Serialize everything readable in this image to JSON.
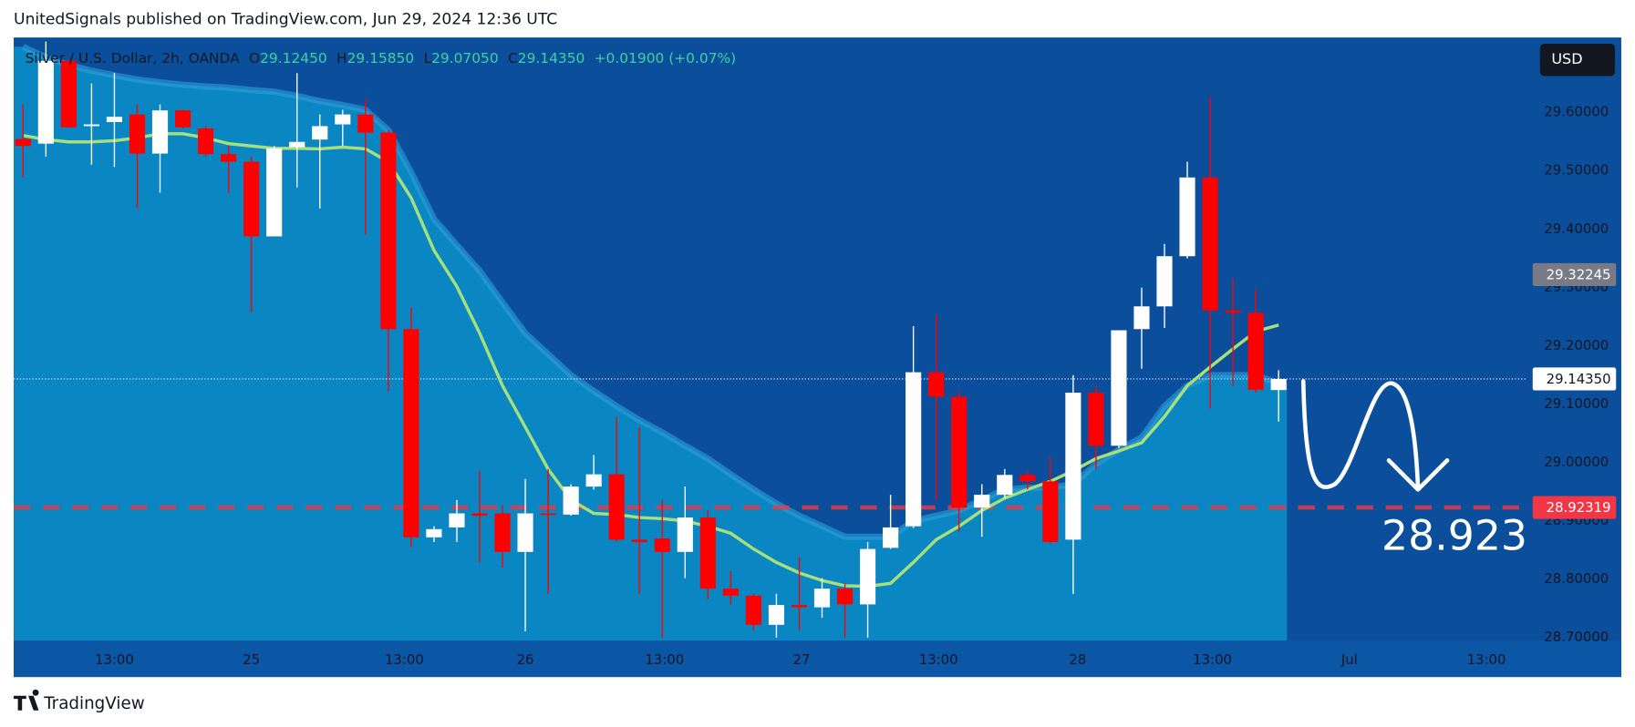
{
  "header": {
    "text": "UnitedSignals published on TradingView.com, Jun 29, 2024 12:36 UTC"
  },
  "footer": {
    "brand": "TradingView"
  },
  "chart_data": {
    "type": "candlestick",
    "legend": {
      "symbol": "Silver / U.S. Dollar, 2h, OANDA",
      "ohlc": [
        {
          "key": "O",
          "text": "29.12450"
        },
        {
          "key": "H",
          "text": "29.15850"
        },
        {
          "key": "L",
          "text": "29.07050"
        },
        {
          "key": "C",
          "text": "29.14350"
        }
      ],
      "change": "+0.01900 (+0.07%)"
    },
    "currency": "USD",
    "open": [
      29.555,
      29.547,
      29.689,
      29.577,
      29.584,
      29.597,
      29.53,
      29.604,
      29.573,
      29.529,
      29.516,
      29.388,
      29.541,
      29.554,
      29.58,
      29.597,
      29.566,
      29.229,
      28.872,
      28.889,
      28.913,
      28.913,
      28.847,
      28.913,
      28.911,
      28.959,
      28.98,
      28.868,
      28.87,
      28.847,
      28.906,
      28.784,
      28.772,
      28.722,
      28.756,
      28.752,
      28.784,
      28.757,
      28.854,
      28.891,
      29.155,
      29.113,
      28.923,
      28.945,
      28.979,
      28.968,
      28.868,
      29.12,
      29.029,
      29.229,
      29.268,
      29.354,
      29.489,
      29.261,
      29.257,
      29.1245
    ],
    "high": [
      29.614,
      29.722,
      29.689,
      29.65,
      29.668,
      29.614,
      29.614,
      29.605,
      29.577,
      29.543,
      29.525,
      29.543,
      29.668,
      29.597,
      29.605,
      29.623,
      29.57,
      29.266,
      28.891,
      28.936,
      28.986,
      28.927,
      28.972,
      28.989,
      28.963,
      29.013,
      29.079,
      29.061,
      28.936,
      28.959,
      28.918,
      28.814,
      28.775,
      28.775,
      28.838,
      28.802,
      28.793,
      28.864,
      28.945,
      29.234,
      29.254,
      29.123,
      28.963,
      28.989,
      28.986,
      29.011,
      29.15,
      29.132,
      29.227,
      29.3,
      29.375,
      29.516,
      29.627,
      29.316,
      29.297,
      29.1585
    ],
    "low": [
      29.489,
      29.525,
      29.575,
      29.511,
      29.507,
      29.436,
      29.463,
      29.573,
      29.525,
      29.463,
      29.257,
      29.388,
      29.472,
      29.436,
      29.543,
      29.391,
      29.123,
      28.855,
      28.864,
      28.864,
      28.829,
      28.82,
      28.711,
      28.775,
      28.909,
      28.954,
      28.864,
      28.775,
      28.7,
      28.802,
      28.766,
      28.757,
      28.713,
      28.7,
      28.713,
      28.734,
      28.7,
      28.7,
      28.852,
      28.888,
      28.936,
      28.882,
      28.873,
      28.939,
      28.954,
      28.861,
      28.775,
      28.989,
      29.025,
      29.161,
      29.231,
      29.35,
      29.093,
      29.132,
      29.12,
      29.0705
    ],
    "close": [
      29.543,
      29.689,
      29.575,
      29.58,
      29.593,
      29.53,
      29.604,
      29.575,
      29.529,
      29.516,
      29.388,
      29.539,
      29.55,
      29.577,
      29.597,
      29.566,
      29.229,
      28.872,
      28.886,
      28.913,
      28.909,
      28.847,
      28.913,
      28.911,
      28.959,
      28.98,
      28.868,
      28.864,
      28.847,
      28.906,
      28.784,
      28.772,
      28.722,
      28.756,
      28.752,
      28.784,
      28.757,
      28.852,
      28.889,
      29.155,
      29.113,
      28.923,
      28.945,
      28.979,
      28.968,
      28.864,
      29.12,
      29.029,
      29.227,
      29.268,
      29.354,
      29.489,
      29.261,
      29.257,
      29.125,
      29.1435
    ],
    "up_color": "#ffffff",
    "down_color": "#ff0000",
    "ma": {
      "color": "#a6e07c",
      "values": [
        29.561,
        29.554,
        29.55,
        29.55,
        29.552,
        29.557,
        29.564,
        29.564,
        29.557,
        29.547,
        29.543,
        29.539,
        29.539,
        29.538,
        29.541,
        29.538,
        29.516,
        29.454,
        29.364,
        29.302,
        29.222,
        29.132,
        29.061,
        28.989,
        28.936,
        28.913,
        28.911,
        28.906,
        28.904,
        28.9,
        28.891,
        28.879,
        28.852,
        28.829,
        28.811,
        28.798,
        28.789,
        28.788,
        28.793,
        28.829,
        28.868,
        28.891,
        28.918,
        28.939,
        28.954,
        28.968,
        28.986,
        29.007,
        29.02,
        29.034,
        29.079,
        29.132,
        29.164,
        29.195,
        29.225,
        29.236
      ]
    },
    "band_upper": {
      "color": "#2da2da",
      "fill": "#0a86c2",
      "values": [
        29.713,
        29.695,
        29.682,
        29.672,
        29.664,
        29.657,
        29.652,
        29.648,
        29.645,
        29.643,
        29.639,
        29.636,
        29.629,
        29.62,
        29.613,
        29.605,
        29.57,
        29.498,
        29.418,
        29.373,
        29.329,
        29.275,
        29.222,
        29.186,
        29.15,
        29.123,
        29.097,
        29.073,
        29.052,
        29.029,
        29.007,
        28.98,
        28.954,
        28.93,
        28.909,
        28.891,
        28.873,
        28.873,
        28.873,
        28.9,
        28.909,
        28.918,
        28.936,
        28.954,
        28.957,
        28.957,
        28.963,
        28.998,
        29.022,
        29.043,
        29.097,
        29.132,
        29.15,
        29.15,
        29.15,
        29.136
      ]
    },
    "ylim": [
      28.695,
      29.729
    ],
    "yticks": [
      {
        "value": 28.7,
        "label": "28.70000"
      },
      {
        "value": 28.8,
        "label": "28.80000"
      },
      {
        "value": 28.9,
        "label": "28.90000"
      },
      {
        "value": 29.0,
        "label": "29.00000"
      },
      {
        "value": 29.1,
        "label": "29.10000"
      },
      {
        "value": 29.2,
        "label": "29.20000"
      },
      {
        "value": 29.3,
        "label": "29.30000"
      },
      {
        "value": 29.4,
        "label": "29.40000"
      },
      {
        "value": 29.5,
        "label": "29.50000"
      },
      {
        "value": 29.6,
        "label": "29.60000"
      }
    ],
    "xlim": [
      -0.41,
      65.9
    ],
    "xticks": [
      {
        "value": 4.0,
        "label": "13:00"
      },
      {
        "value": 10.0,
        "label": "25"
      },
      {
        "value": 16.7,
        "label": "13:00"
      },
      {
        "value": 22.0,
        "label": "26"
      },
      {
        "value": 28.1,
        "label": "13:00"
      },
      {
        "value": 34.1,
        "label": "27"
      },
      {
        "value": 40.1,
        "label": "13:00"
      },
      {
        "value": 46.2,
        "label": "28"
      },
      {
        "value": 52.1,
        "label": "13:00"
      },
      {
        "value": 58.1,
        "label": "Jul"
      },
      {
        "value": 64.1,
        "label": "13:00"
      }
    ],
    "price_lines": [
      {
        "value": 29.32245,
        "label": "29.32245",
        "color": "#787b86",
        "text_color": "#ffffff",
        "style": "none"
      },
      {
        "value": 29.1435,
        "label": "29.14350",
        "color": "#ffffff",
        "text_color": "#131722",
        "style": "dotted"
      },
      {
        "value": 28.92319,
        "label": "28.92319",
        "color": "#f23645",
        "text_color": "#ffffff",
        "style": "dashed"
      }
    ],
    "annotation": {
      "text": "28.923"
    }
  }
}
